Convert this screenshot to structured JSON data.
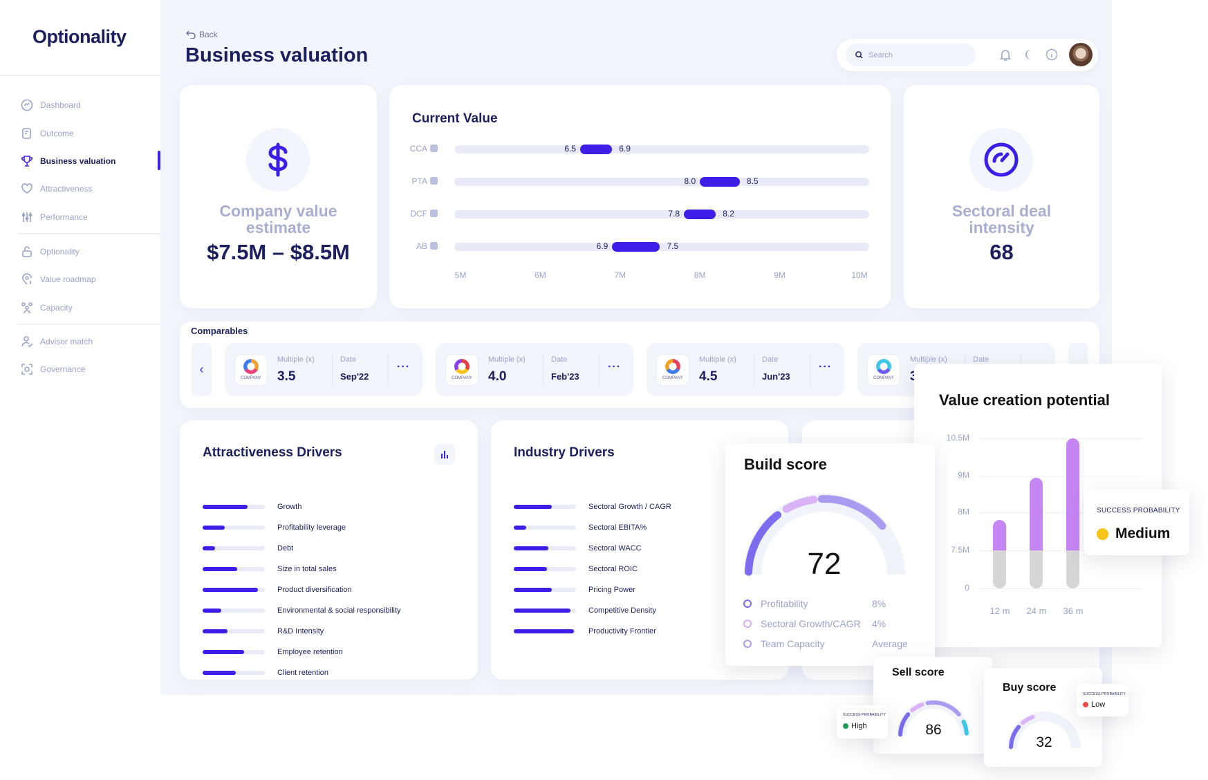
{
  "app": {
    "logo": "Optionality"
  },
  "sidebar": {
    "items": [
      {
        "label": "Dashboard",
        "icon": "dashboard-gauge-icon"
      },
      {
        "label": "Outcome",
        "icon": "outcome-doc-icon"
      },
      {
        "label": "Business valuation",
        "icon": "trophy-icon",
        "active": true
      },
      {
        "label": "Attractiveness",
        "icon": "heart-icon"
      },
      {
        "label": "Performance",
        "icon": "sliders-icon"
      },
      {
        "label": "Optionality",
        "icon": "unlock-icon"
      },
      {
        "label": "Value roadmap",
        "icon": "location-dollar-icon"
      },
      {
        "label": "Capacity",
        "icon": "team-icon"
      },
      {
        "label": "Advisor match",
        "icon": "user-check-icon"
      },
      {
        "label": "Governance",
        "icon": "scan-icon"
      }
    ]
  },
  "header": {
    "back": "Back",
    "title": "Business valuation",
    "search_placeholder": "Search"
  },
  "kpis": {
    "company": {
      "label": "Company value estimate",
      "value": "$7.5M – $8.5M"
    },
    "sectoral": {
      "label": "Sectoral deal intensity",
      "value": "68"
    }
  },
  "current_value": {
    "title": "Current Value",
    "ticks": [
      "5M",
      "6M",
      "7M",
      "8M",
      "9M",
      "10M"
    ],
    "axis_min": 5,
    "axis_max": 10,
    "rows": [
      {
        "label": "CCA",
        "low": "6.5",
        "high": "6.9"
      },
      {
        "label": "PTA",
        "low": "8.0",
        "high": "8.5"
      },
      {
        "label": "DCF",
        "low": "7.8",
        "high": "8.2"
      },
      {
        "label": "AB",
        "low": "6.9",
        "high": "7.5"
      }
    ]
  },
  "comparables": {
    "title": "Comparables",
    "multiple_label": "Multiple (x)",
    "date_label": "Date",
    "logo_text": "COMPANY",
    "items": [
      {
        "multiple": "3.5",
        "date": "Sep'22"
      },
      {
        "multiple": "4.0",
        "date": "Feb'23"
      },
      {
        "multiple": "4.5",
        "date": "Jun'23"
      },
      {
        "multiple": "3",
        "date": ""
      }
    ]
  },
  "attractiveness": {
    "title": "Attractiveness Drivers",
    "items": [
      {
        "label": "Growth",
        "value": 0.72
      },
      {
        "label": "Profitability leverage",
        "value": 0.36
      },
      {
        "label": "Debt",
        "value": 0.2
      },
      {
        "label": "Size in total sales",
        "value": 0.55
      },
      {
        "label": "Product diversification",
        "value": 0.89
      },
      {
        "label": "Environmental & social responsibility",
        "value": 0.3
      },
      {
        "label": "R&D Intensity",
        "value": 0.4
      },
      {
        "label": "Employee retention",
        "value": 0.67
      },
      {
        "label": "Client retention",
        "value": 0.53
      }
    ]
  },
  "industry": {
    "title": "Industry Drivers",
    "items": [
      {
        "label": "Sectoral Growth / CAGR",
        "value": 0.61
      },
      {
        "label": "Sectoral EBITA%",
        "value": 0.2
      },
      {
        "label": "Sectoral WACC",
        "value": 0.55
      },
      {
        "label": "Sectoral ROIC",
        "value": 0.53
      },
      {
        "label": "Pricing Power",
        "value": 0.61
      },
      {
        "label": "Competitive Density",
        "value": 0.91
      },
      {
        "label": "Productivity Frontier",
        "value": 0.97
      }
    ]
  },
  "value_creation": {
    "title": "Value creation potential",
    "y_ticks": [
      "0",
      "7.5M",
      "8M",
      "9M",
      "10.5M"
    ],
    "y_tick_values": [
      0,
      7.5,
      8,
      9,
      10.5
    ],
    "base": 7.5,
    "bars": [
      {
        "label": "12 m",
        "value": 7.9
      },
      {
        "label": "24 m",
        "value": 8.95
      },
      {
        "label": "36 m",
        "value": 10.5
      }
    ],
    "success": {
      "label": "SUCCESS PROBABILITY",
      "value": "Medium",
      "color": "#f5c518"
    }
  },
  "build_score": {
    "title": "Build score",
    "score": "72",
    "legend": [
      {
        "label": "Profitability",
        "value": "8%",
        "color": "#7b6cf0"
      },
      {
        "label": "Sectoral Growth/CAGR",
        "value": "4%",
        "color": "#d9a9f5"
      },
      {
        "label": "Team Capacity",
        "value": "Average",
        "color": "#a99cf0"
      }
    ]
  },
  "sell_score": {
    "title": "Sell score",
    "score": "86",
    "success": {
      "label": "SUCCESS PROBABILITY",
      "value": "High",
      "color": "#1f9d55"
    }
  },
  "buy_score": {
    "title": "Buy score",
    "score": "32",
    "success": {
      "label": "SUCCESS PROBABILITY",
      "value": "Low",
      "color": "#ef4b4b"
    }
  }
}
